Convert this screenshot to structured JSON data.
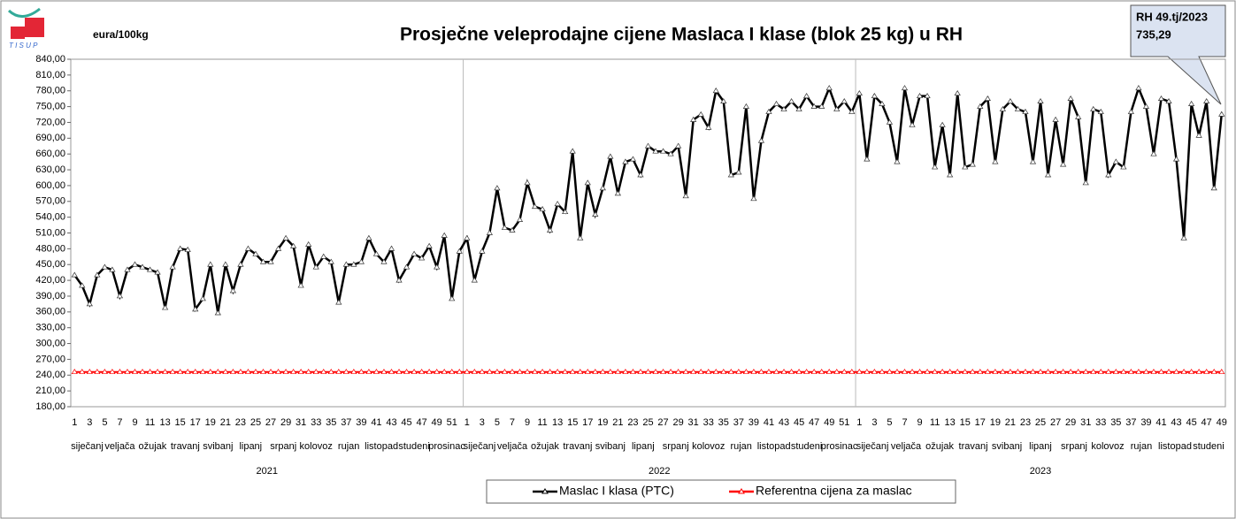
{
  "chart_data": {
    "type": "line",
    "title": "Prosječne veleprodajne cijene Maslaca I klase (blok 25 kg) u RH",
    "y_label": "eura/100kg",
    "annotation": {
      "title": "RH 49.tj/2023",
      "text": "735,29"
    },
    "categories": [
      "1",
      null,
      "3",
      null,
      "5",
      null,
      "7",
      null,
      "9",
      null,
      "11",
      null,
      "13",
      null,
      "15",
      null,
      "17",
      null,
      "19",
      null,
      "21",
      null,
      "23",
      null,
      "25",
      null,
      "27",
      null,
      "29",
      null,
      "31",
      null,
      "33",
      null,
      "35",
      null,
      "37",
      null,
      "39",
      null,
      "41",
      null,
      "43",
      null,
      "45",
      null,
      "47",
      null,
      "49",
      null,
      "51",
      null,
      "1",
      null,
      "3",
      null,
      "5",
      null,
      "7",
      null,
      "9",
      null,
      "11",
      null,
      "13",
      null,
      "15",
      null,
      "17",
      null,
      "19",
      null,
      "21",
      null,
      "23",
      null,
      "25",
      null,
      "27",
      null,
      "29",
      null,
      "31",
      null,
      "33",
      null,
      "35",
      null,
      "37",
      null,
      "39",
      null,
      "41",
      null,
      "43",
      null,
      "45",
      null,
      "47",
      null,
      "49",
      null,
      "51",
      null,
      "1",
      null,
      "3",
      null,
      "5",
      null,
      "7",
      null,
      "9",
      null,
      "11",
      null,
      "13",
      null,
      "15",
      null,
      "17",
      null,
      "19",
      null,
      "21",
      null,
      "23",
      null,
      "25",
      null,
      "27",
      null,
      "29",
      null,
      "31",
      null,
      "33",
      null,
      "35",
      null,
      "37",
      null,
      "39",
      null,
      "41",
      null,
      "43",
      null,
      "45",
      null,
      "47",
      null,
      "49"
    ],
    "year_groups": [
      {
        "label": "2021",
        "months": [
          "siječanj",
          "veljača",
          "ožujak",
          "travanj",
          "svibanj",
          "lipanj",
          "srpanj",
          "kolovoz",
          "rujan",
          "listopad",
          "studeni",
          "prosinac"
        ]
      },
      {
        "label": "2022",
        "months": [
          "siječanj",
          "veljača",
          "ožujak",
          "travanj",
          "svibanj",
          "lipanj",
          "srpanj",
          "kolovoz",
          "rujan",
          "listopad",
          "studeni",
          "prosinac"
        ]
      },
      {
        "label": "2023",
        "months": [
          "siječanj",
          "veljača",
          "ožujak",
          "travanj",
          "svibanj",
          "lipanj",
          "srpanj",
          "kolovoz",
          "rujan",
          "listopad",
          "studeni"
        ]
      }
    ],
    "series": [
      {
        "name": "Maslac I klasa (PTC)",
        "color": "#000000",
        "values": [
          430,
          410,
          375,
          430,
          445,
          440,
          390,
          440,
          450,
          445,
          440,
          435,
          368,
          445,
          480,
          478,
          365,
          385,
          450,
          358,
          450,
          400,
          450,
          480,
          470,
          455,
          455,
          480,
          500,
          485,
          410,
          488,
          445,
          465,
          455,
          378,
          450,
          450,
          455,
          500,
          470,
          455,
          480,
          420,
          445,
          470,
          462,
          485,
          445,
          505,
          385,
          475,
          500,
          420,
          475,
          510,
          595,
          520,
          515,
          535,
          605,
          560,
          555,
          515,
          565,
          550,
          665,
          500,
          605,
          545,
          595,
          655,
          585,
          645,
          650,
          620,
          675,
          665,
          665,
          660,
          675,
          580,
          725,
          735,
          710,
          780,
          760,
          620,
          625,
          750,
          575,
          685,
          740,
          755,
          745,
          760,
          745,
          770,
          750,
          750,
          785,
          745,
          760,
          740,
          775,
          650,
          770,
          755,
          720,
          645,
          785,
          715,
          770,
          770,
          635,
          715,
          620,
          775,
          635,
          640,
          750,
          765,
          645,
          745,
          760,
          745,
          740,
          645,
          760,
          620,
          725,
          640,
          765,
          730,
          605,
          745,
          740,
          620,
          645,
          635,
          740,
          785,
          750,
          660,
          765,
          760,
          650,
          500,
          755,
          695,
          760,
          595,
          735.29
        ]
      },
      {
        "name": "Referentna cijena za maslac",
        "color": "#ff0000",
        "values": [
          246,
          246,
          246,
          246,
          246,
          246,
          246,
          246,
          246,
          246,
          246,
          246,
          246,
          246,
          246,
          246,
          246,
          246,
          246,
          246,
          246,
          246,
          246,
          246,
          246,
          246,
          246,
          246,
          246,
          246,
          246,
          246,
          246,
          246,
          246,
          246,
          246,
          246,
          246,
          246,
          246,
          246,
          246,
          246,
          246,
          246,
          246,
          246,
          246,
          246,
          246,
          246,
          246,
          246,
          246,
          246,
          246,
          246,
          246,
          246,
          246,
          246,
          246,
          246,
          246,
          246,
          246,
          246,
          246,
          246,
          246,
          246,
          246,
          246,
          246,
          246,
          246,
          246,
          246,
          246,
          246,
          246,
          246,
          246,
          246,
          246,
          246,
          246,
          246,
          246,
          246,
          246,
          246,
          246,
          246,
          246,
          246,
          246,
          246,
          246,
          246,
          246,
          246,
          246,
          246,
          246,
          246,
          246,
          246,
          246,
          246,
          246,
          246,
          246,
          246,
          246,
          246,
          246,
          246,
          246,
          246,
          246,
          246,
          246,
          246,
          246,
          246,
          246,
          246,
          246,
          246,
          246,
          246,
          246,
          246,
          246,
          246,
          246,
          246,
          246,
          246,
          246,
          246,
          246,
          246,
          246,
          246,
          246,
          246,
          246,
          246,
          246,
          246
        ]
      }
    ],
    "ylim": [
      180,
      840
    ],
    "yticks": [
      {
        "value": 180,
        "label": "180,00"
      },
      {
        "value": 210,
        "label": "210,00"
      },
      {
        "value": 240,
        "label": "240,00"
      },
      {
        "value": 270,
        "label": "270,00"
      },
      {
        "value": 300,
        "label": "300,00"
      },
      {
        "value": 330,
        "label": "330,00"
      },
      {
        "value": 360,
        "label": "360,00"
      },
      {
        "value": 390,
        "label": "390,00"
      },
      {
        "value": 420,
        "label": "420,00"
      },
      {
        "value": 450,
        "label": "450,00"
      },
      {
        "value": 480,
        "label": "480,00"
      },
      {
        "value": 510,
        "label": "510,00"
      },
      {
        "value": 540,
        "label": "540,00"
      },
      {
        "value": 570,
        "label": "570,00"
      },
      {
        "value": 600,
        "label": "600,00"
      },
      {
        "value": 630,
        "label": "630,00"
      },
      {
        "value": 660,
        "label": "660,00"
      },
      {
        "value": 690,
        "label": "690,00"
      },
      {
        "value": 720,
        "label": "720,00"
      },
      {
        "value": 750,
        "label": "750,00"
      },
      {
        "value": 780,
        "label": "780,00"
      },
      {
        "value": 810,
        "label": "810,00"
      },
      {
        "value": 840,
        "label": "840,00"
      }
    ],
    "grid": false,
    "legend": "bottom"
  }
}
